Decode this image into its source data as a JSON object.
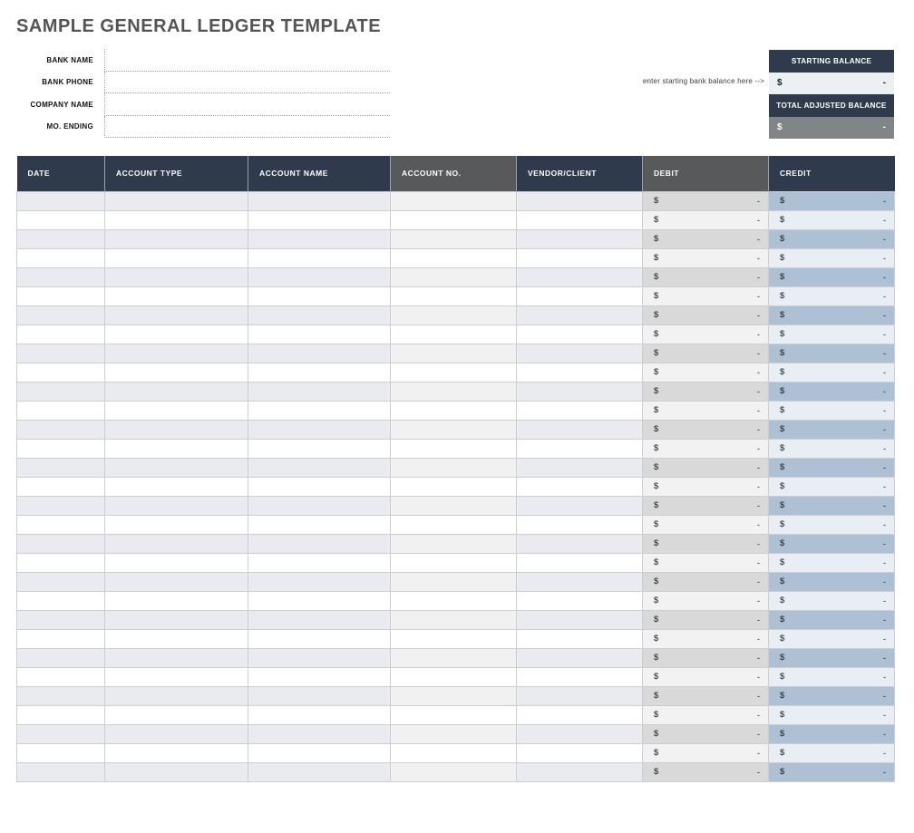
{
  "page": {
    "title": "SAMPLE GENERAL LEDGER TEMPLATE"
  },
  "form": {
    "fields": [
      {
        "label": "BANK NAME",
        "value": ""
      },
      {
        "label": "BANK PHONE",
        "value": ""
      },
      {
        "label": "COMPANY NAME",
        "value": ""
      },
      {
        "label": "MO. ENDING",
        "value": ""
      }
    ]
  },
  "balance_panel": {
    "starting_balance_label": "STARTING BALANCE",
    "starting_balance_currency": "$",
    "starting_balance_value": "-",
    "note": "enter starting bank balance here -->",
    "total_adjusted_label": "TOTAL ADJUSTED BALANCE",
    "total_adjusted_currency": "$",
    "total_adjusted_value": "-"
  },
  "table": {
    "columns": [
      {
        "id": "date",
        "label": "DATE",
        "header_variant": "navy",
        "body": "plain-blue"
      },
      {
        "id": "account-type",
        "label": "ACCOUNT TYPE",
        "header_variant": "navy",
        "body": "plain-blue"
      },
      {
        "id": "account-name",
        "label": "ACCOUNT NAME",
        "header_variant": "navy",
        "body": "plain-blue"
      },
      {
        "id": "account-no",
        "label": "ACCOUNT NO.",
        "header_variant": "gray",
        "body": "plain-gray"
      },
      {
        "id": "vendor-client",
        "label": "VENDOR/CLIENT",
        "header_variant": "navy",
        "body": "plain-blue"
      },
      {
        "id": "debit",
        "label": "DEBIT",
        "header_variant": "gray",
        "body": "money-gray"
      },
      {
        "id": "credit",
        "label": "CREDIT",
        "header_variant": "navy",
        "body": "money-blue"
      }
    ],
    "row_count": 31,
    "row_template": {
      "date": "",
      "account_type": "",
      "account_name": "",
      "account_no": "",
      "vendor_client": "",
      "debit_currency": "$",
      "debit_value": "-",
      "credit_currency": "$",
      "credit_value": "-"
    }
  },
  "colors": {
    "header_navy": "#2f3b4c",
    "header_gray": "#58595b",
    "row_shade_blue": "#e9ebf1",
    "row_shade_gray": "#f1f1f1",
    "debit_odd": "#d9d9d9",
    "debit_even": "#f2f2f2",
    "credit_odd": "#aec0d3",
    "credit_even": "#e9edf4",
    "total_row_gray": "#828588",
    "starting_value_bg": "#edf0f3",
    "grid_line": "#cbcfd4",
    "title_text": "#545454"
  }
}
